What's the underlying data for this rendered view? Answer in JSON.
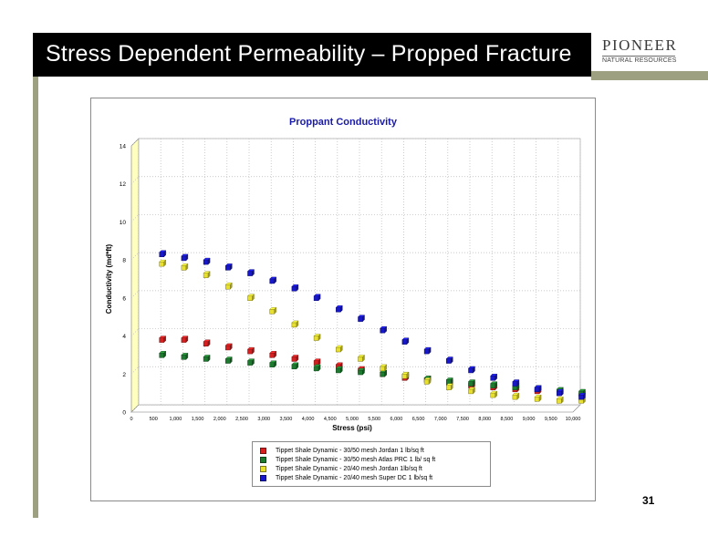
{
  "slide": {
    "title": "Stress Dependent Permeability – Propped Fracture",
    "page_number": "31",
    "logo": {
      "name": "PIONEER",
      "subtitle": "NATURAL RESOURCES"
    }
  },
  "colors": {
    "header_background": "#000000",
    "accent_olive": "#9ea181",
    "chart_title": "#1a1aa8",
    "wall": "#ffffc0",
    "red": "#d42020",
    "green": "#1e7a2e",
    "yellow": "#e8e030",
    "blue": "#1818c8"
  },
  "chart_data": {
    "type": "scatter",
    "title": "Proppant Conductivity",
    "xlabel": "Stress (psi)",
    "ylabel": "Conductivity (md*ft)",
    "xlim": [
      0,
      10000
    ],
    "ylim": [
      0,
      14
    ],
    "x_tick_labels": [
      "0",
      "500",
      "1,000",
      "1,500",
      "2,000",
      "2,500",
      "3,000",
      "3,500",
      "4,000",
      "4,500",
      "5,000",
      "5,500",
      "6,000",
      "6,500",
      "7,000",
      "7,500",
      "8,000",
      "8,500",
      "9,000",
      "9,500",
      "10,000"
    ],
    "y_tick_labels": [
      "0",
      "2",
      "4",
      "6",
      "8",
      "10",
      "12",
      "14"
    ],
    "grid": true,
    "legend_position": "bottom",
    "series": [
      {
        "name": "Tippet Shale Dynamic - 30/50 mesh Jordan 1 lb/sq ft",
        "color": "#d42020",
        "x": [
          500,
          1000,
          1500,
          2000,
          2500,
          3000,
          3500,
          4000,
          4500,
          5000,
          5500,
          6000,
          6500,
          7000,
          7500,
          8000,
          8500,
          9000,
          9500,
          10000
        ],
        "y": [
          3.4,
          3.4,
          3.2,
          3.0,
          2.8,
          2.6,
          2.4,
          2.2,
          2.0,
          1.8,
          1.6,
          1.4,
          1.3,
          1.1,
          1.0,
          0.9,
          0.8,
          0.7,
          0.6,
          0.5
        ]
      },
      {
        "name": "Tippet Shale Dynamic - 30/50 mesh Atlas PRC 1 lb/ sq ft",
        "color": "#1e7a2e",
        "x": [
          500,
          1000,
          1500,
          2000,
          2500,
          3000,
          3500,
          4000,
          4500,
          5000,
          5500,
          6000,
          6500,
          7000,
          7500,
          8000,
          8500,
          9000,
          9500,
          10000
        ],
        "y": [
          2.6,
          2.5,
          2.4,
          2.3,
          2.2,
          2.1,
          2.0,
          1.9,
          1.8,
          1.7,
          1.6,
          1.5,
          1.3,
          1.2,
          1.1,
          1.0,
          0.9,
          0.8,
          0.7,
          0.6
        ]
      },
      {
        "name": "Tippet Shale Dynamic - 20/40 mesh Jordan 1lb/sq ft",
        "color": "#e8e030",
        "x": [
          500,
          1000,
          1500,
          2000,
          2500,
          3000,
          3500,
          4000,
          4500,
          5000,
          5500,
          6000,
          6500,
          7000,
          7500,
          8000,
          8500,
          9000,
          9500,
          10000
        ],
        "y": [
          7.4,
          7.2,
          6.8,
          6.2,
          5.6,
          4.9,
          4.2,
          3.5,
          2.9,
          2.4,
          1.9,
          1.5,
          1.2,
          0.9,
          0.7,
          0.5,
          0.4,
          0.3,
          0.2,
          0.2
        ]
      },
      {
        "name": "Tippet Shale Dynamic - 20/40 mesh Super DC 1 lb/sq ft",
        "color": "#1818c8",
        "x": [
          500,
          1000,
          1500,
          2000,
          2500,
          3000,
          3500,
          4000,
          4500,
          5000,
          5500,
          6000,
          6500,
          7000,
          7500,
          8000,
          8500,
          9000,
          9500,
          10000
        ],
        "y": [
          7.9,
          7.7,
          7.5,
          7.2,
          6.9,
          6.5,
          6.1,
          5.6,
          5.0,
          4.5,
          3.9,
          3.3,
          2.8,
          2.3,
          1.8,
          1.4,
          1.1,
          0.8,
          0.6,
          0.4
        ]
      }
    ]
  }
}
